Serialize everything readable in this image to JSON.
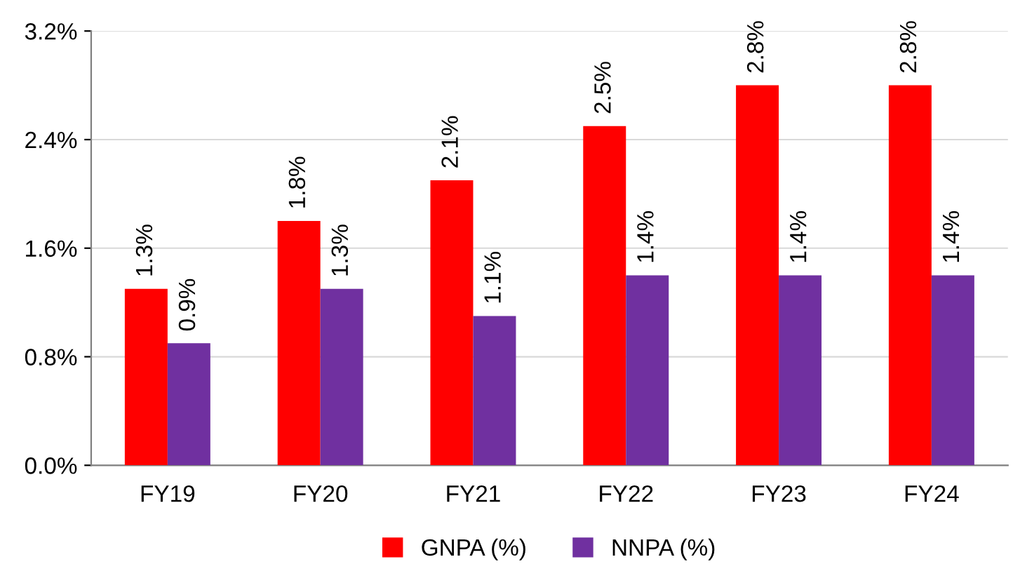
{
  "chart_data": {
    "type": "bar",
    "categories": [
      "FY19",
      "FY20",
      "FY21",
      "FY22",
      "FY23",
      "FY24"
    ],
    "series": [
      {
        "name": "GNPA (%)",
        "color": "#ff0000",
        "values": [
          1.3,
          1.8,
          2.1,
          2.5,
          2.8,
          2.8
        ],
        "value_labels": [
          "1.3%",
          "1.8%",
          "2.1%",
          "2.5%",
          "2.8%",
          "2.8%"
        ]
      },
      {
        "name": "NNPA (%)",
        "color": "#7030a0",
        "values": [
          0.9,
          1.3,
          1.1,
          1.4,
          1.4,
          1.4
        ],
        "value_labels": [
          "0.9%",
          "1.3%",
          "1.1%",
          "1.4%",
          "1.4%",
          "1.4%"
        ]
      }
    ],
    "ylim": [
      0,
      3.2
    ],
    "yticks": [
      {
        "value": 0,
        "label": "0.0%"
      },
      {
        "value": 0.8,
        "label": "0.8%"
      },
      {
        "value": 1.6,
        "label": "1.6%"
      },
      {
        "value": 2.4,
        "label": "2.4%"
      },
      {
        "value": 3.2,
        "label": "3.2%"
      }
    ],
    "grid": "y",
    "legend": "bottom"
  }
}
